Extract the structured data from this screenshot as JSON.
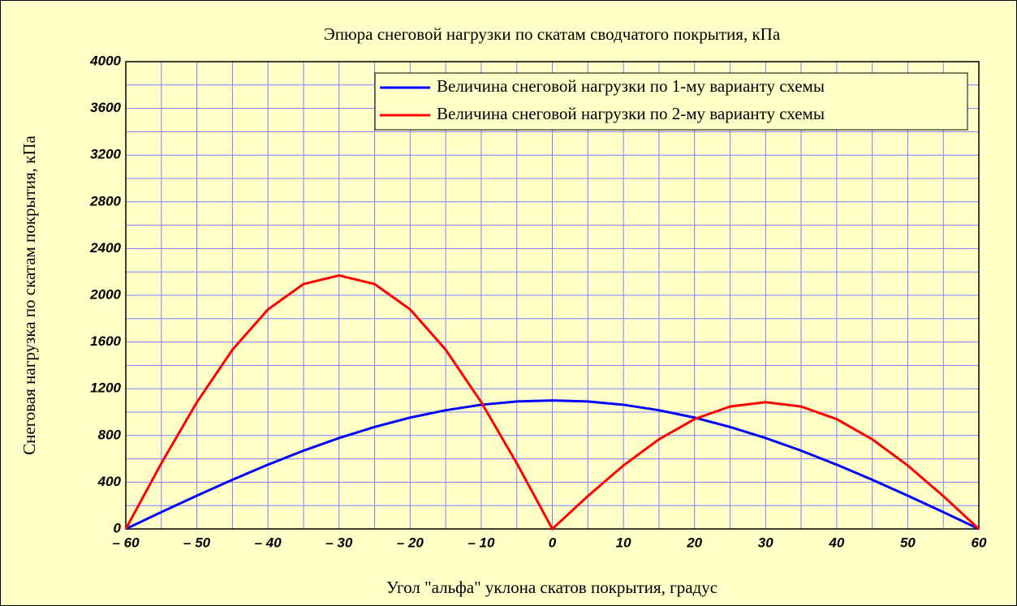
{
  "chart_data": {
    "type": "line",
    "title": "Эпюра снеговой нагрузки по скатам сводчатого покрытия, кПа",
    "xlabel": "Угол \"альфа\" уклона скатов покрытия, градус",
    "ylabel": "Снеговая нагрузка по скатам покрытия, кПа",
    "x": [
      -60,
      -55,
      -50,
      -45,
      -40,
      -35,
      -30,
      -25,
      -20,
      -15,
      -10,
      -5,
      0,
      5,
      10,
      15,
      20,
      25,
      30,
      35,
      40,
      45,
      50,
      55,
      60
    ],
    "series": [
      {
        "name": "Величина снеговой нагрузки по 1-му варианту схемы",
        "color": "#0000ff",
        "values": [
          0,
          144,
          285,
          421,
          550,
          670,
          778,
          873,
          953,
          1016,
          1063,
          1091,
          1100,
          1091,
          1063,
          1016,
          953,
          873,
          778,
          670,
          550,
          421,
          285,
          144,
          0
        ]
      },
      {
        "name": "Величина снеговой нагрузки по 2-му варианту схемы",
        "color": "#ff0000",
        "values": [
          0,
          562,
          1085,
          1534,
          1879,
          2096,
          2170,
          2096,
          1879,
          1534,
          1085,
          562,
          0,
          281,
          543,
          767,
          940,
          1048,
          1085,
          1048,
          940,
          767,
          543,
          281,
          0
        ]
      }
    ],
    "xlim": [
      -60,
      60
    ],
    "ylim": [
      0,
      4000
    ],
    "xticks": [
      {
        "value": -60,
        "label": "– 60"
      },
      {
        "value": -50,
        "label": "– 50"
      },
      {
        "value": -40,
        "label": "– 40"
      },
      {
        "value": -30,
        "label": "– 30"
      },
      {
        "value": -20,
        "label": "– 20"
      },
      {
        "value": -10,
        "label": "– 10"
      },
      0,
      10,
      20,
      30,
      40,
      50,
      60
    ],
    "yticks": [
      0,
      400,
      800,
      1200,
      1600,
      2000,
      2400,
      2800,
      3200,
      3600,
      4000
    ],
    "xgrid": [
      -55,
      -45,
      -35,
      -25,
      -15,
      -5,
      5,
      15,
      25,
      35,
      45,
      55
    ],
    "ygrid": [
      200,
      600,
      1000,
      1400,
      1800,
      2200,
      2600,
      3000,
      3400,
      3800
    ],
    "grid": true,
    "grid_color": "#8080ff",
    "background": "#ffffc8",
    "legend": "upper right"
  }
}
